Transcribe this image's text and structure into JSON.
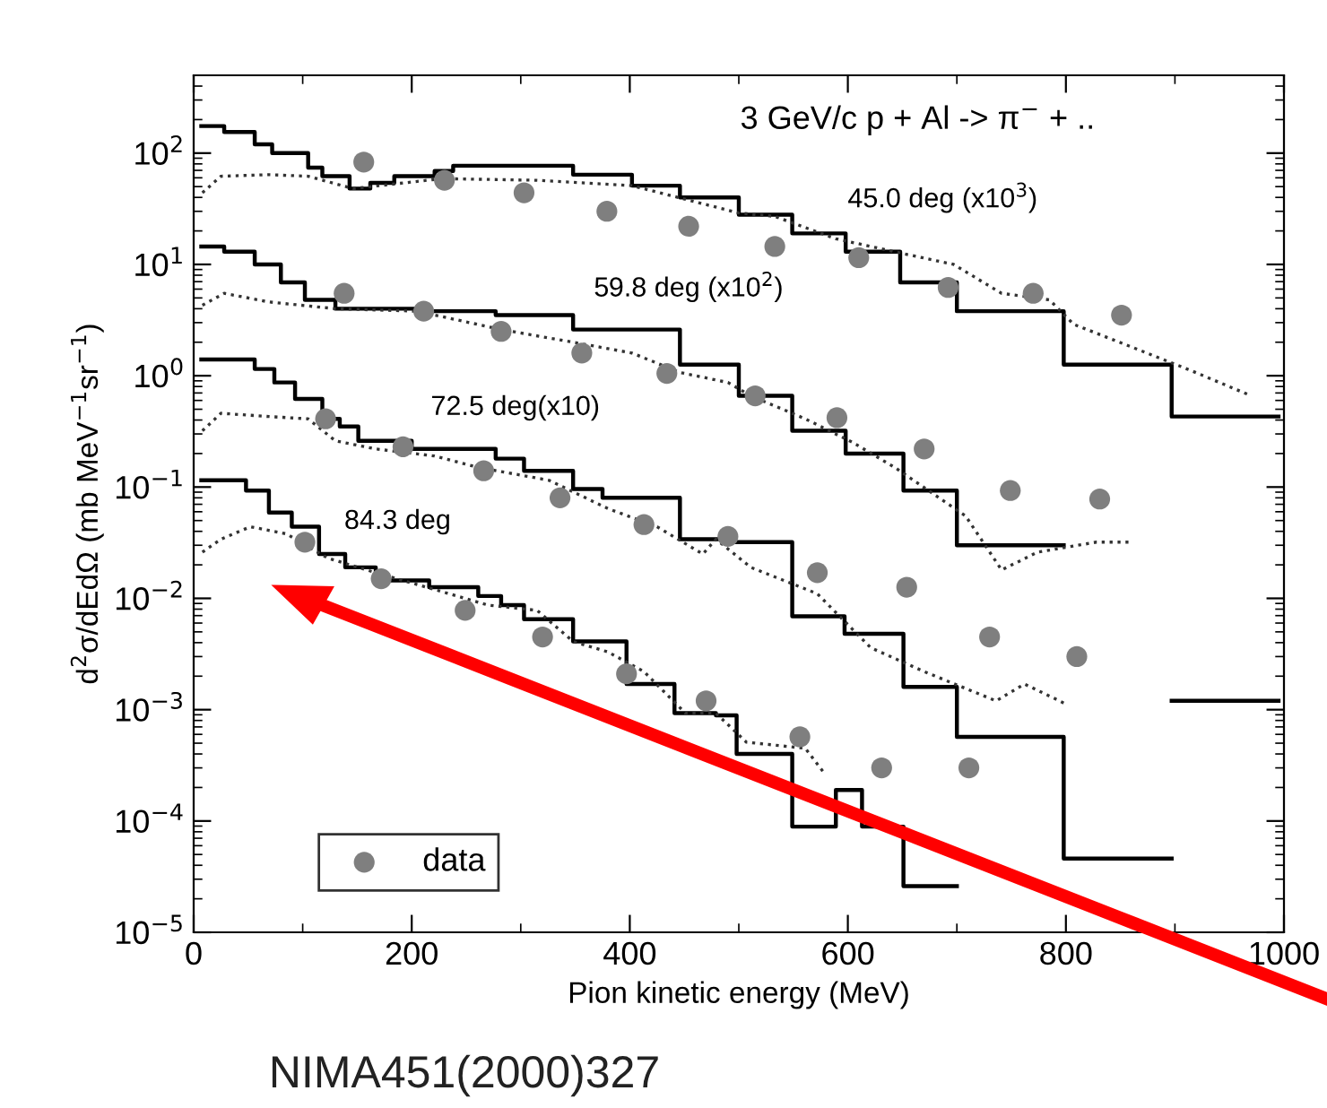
{
  "chart_data": {
    "type": "step",
    "title": "3 GeV/c p + Al -> π$^{−}$ + ..",
    "xlabel": "Pion kinetic energy (MeV)",
    "ylabel": "d$^{2}$σ/dEdΩ (mb MeV$^{−1}$sr$^{−1}$)",
    "log": "y",
    "grid": false,
    "legend": "bottom left",
    "xlim": [
      0,
      1000
    ],
    "xticks": [
      0,
      200,
      400,
      600,
      800,
      1000
    ],
    "ylim": [
      1e-05,
      500
    ],
    "yticks": [
      {
        "value": 1e-05,
        "label": "10$^{−5}$"
      },
      {
        "value": 0.0001,
        "label": "10$^{−4}$"
      },
      {
        "value": 0.001,
        "label": "10$^{−3}$"
      },
      {
        "value": 0.01,
        "label": "10$^{−2}$"
      },
      {
        "value": 0.1,
        "label": "10$^{−1}$"
      },
      {
        "value": 1,
        "label": "10$^{0}$"
      },
      {
        "value": 10,
        "label": "10$^{1}$"
      },
      {
        "value": 100,
        "label": "10$^{2}$"
      }
    ],
    "annotations": [
      "45.0 deg (x10$^{3}$)",
      "59.8 deg (x10$^{2}$)",
      "72.5 deg(x10)",
      "84.3 deg",
      "NIMA451(2000)327"
    ],
    "series": [
      {
        "line_style": "solid",
        "color": "#000000",
        "x": [
          7,
          28,
          56,
          72,
          105,
          118,
          143,
          162,
          184,
          221,
          238,
          277,
          348,
          402,
          446,
          500,
          549,
          598,
          648,
          700,
          798,
          897,
          995
        ],
        "values": [
          175,
          155,
          120,
          100,
          74,
          62,
          48,
          54,
          62,
          69,
          77,
          77,
          64,
          51,
          40,
          28,
          19,
          13,
          6.9,
          3.8,
          1.26,
          0.43,
          0.43
        ]
      },
      {
        "line_style": "solid",
        "color": "#000000",
        "x": [
          7,
          28,
          56,
          80,
          102,
          130,
          211,
          277,
          348,
          446,
          500,
          549,
          598,
          651,
          700,
          798,
          897,
          995
        ],
        "values": [
          14.5,
          13,
          10,
          6.9,
          4.8,
          4.0,
          3.8,
          3.5,
          2.6,
          1.26,
          0.66,
          0.32,
          0.2,
          0.093,
          0.03,
          null,
          0.0012,
          0.0012
        ]
      },
      {
        "line_style": "solid",
        "color": "#000000",
        "x": [
          7,
          56,
          74,
          93,
          118,
          134,
          151,
          200,
          277,
          303,
          348,
          375,
          446,
          495,
          549,
          597,
          651,
          700,
          798,
          897
        ],
        "values": [
          1.4,
          1.15,
          0.87,
          0.62,
          0.41,
          0.35,
          0.26,
          0.22,
          0.18,
          0.14,
          0.096,
          0.08,
          0.034,
          0.032,
          0.0069,
          0.0048,
          0.0016,
          0.00057,
          4.6e-05,
          4.6e-05
        ]
      },
      {
        "line_style": "solid",
        "color": "#000000",
        "x": [
          7,
          48,
          69,
          90,
          115,
          139,
          167,
          216,
          261,
          282,
          303,
          348,
          397,
          441,
          479,
          498,
          549,
          589,
          613,
          651,
          700
        ],
        "values": [
          0.115,
          0.093,
          0.059,
          0.044,
          0.025,
          0.019,
          0.0145,
          0.0126,
          0.0105,
          0.0087,
          0.0065,
          0.0041,
          0.0017,
          0.00093,
          0.00089,
          0.0004,
          8.9e-05,
          0.00019,
          8.9e-05,
          2.6e-05,
          2.6e-05
        ]
      },
      {
        "type": "line",
        "line_style": "dotted",
        "color": "#333333",
        "x": [
          8,
          25,
          69,
          105,
          146,
          228,
          315,
          402,
          500,
          533,
          589,
          643,
          697,
          741,
          785,
          807,
          861,
          916,
          970
        ],
        "values": [
          44,
          62,
          64,
          62,
          48,
          59,
          57,
          51,
          29,
          27,
          17,
          13,
          10,
          5.5,
          4.8,
          2.9,
          1.8,
          1.1,
          0.66
        ]
      },
      {
        "type": "line",
        "line_style": "dotted",
        "color": "#333333",
        "x": [
          8,
          28,
          69,
          130,
          205,
          282,
          348,
          402,
          446,
          490,
          511,
          561,
          605,
          643,
          708,
          741,
          774,
          828,
          861
        ],
        "values": [
          4.3,
          5.5,
          4.6,
          4.0,
          3.8,
          2.6,
          2.0,
          1.6,
          1.07,
          0.87,
          0.66,
          0.41,
          0.25,
          0.15,
          0.055,
          0.018,
          0.026,
          0.032,
          0.032
        ]
      },
      {
        "type": "line",
        "line_style": "dotted",
        "color": "#333333",
        "x": [
          8,
          25,
          69,
          105,
          130,
          167,
          221,
          261,
          326,
          380,
          425,
          467,
          479,
          511,
          572,
          621,
          670,
          736,
          762,
          802
        ],
        "values": [
          0.32,
          0.46,
          0.43,
          0.41,
          0.26,
          0.22,
          0.19,
          0.15,
          0.115,
          0.064,
          0.044,
          0.025,
          0.034,
          0.019,
          0.011,
          0.0036,
          0.0022,
          0.0012,
          0.0017,
          0.0011
        ]
      },
      {
        "type": "line",
        "line_style": "dotted",
        "color": "#333333",
        "x": [
          8,
          25,
          52,
          85,
          123,
          167,
          221,
          270,
          315,
          348,
          380,
          413,
          451,
          479,
          507,
          561,
          577
        ],
        "values": [
          0.026,
          0.034,
          0.044,
          0.038,
          0.023,
          0.017,
          0.012,
          0.0087,
          0.0078,
          0.0041,
          0.0033,
          0.0022,
          0.00093,
          0.00093,
          0.00051,
          0.00045,
          0.00028
        ]
      },
      {
        "type": "scatter",
        "name": "data",
        "marker": "circle",
        "color": "#7f7f7f",
        "x": [
          156,
          230,
          303,
          379,
          454,
          533,
          610,
          692,
          770,
          851
        ],
        "values": [
          83,
          57,
          44,
          30,
          22,
          14.5,
          11.5,
          6.2,
          5.5,
          3.5
        ]
      },
      {
        "type": "scatter",
        "marker": "circle",
        "color": "#7f7f7f",
        "x": [
          138,
          211,
          282,
          356,
          434,
          515,
          590,
          670,
          749,
          831
        ],
        "values": [
          5.5,
          3.8,
          2.5,
          1.6,
          1.05,
          0.66,
          0.42,
          0.22,
          0.093,
          0.078
        ]
      },
      {
        "type": "scatter",
        "marker": "circle",
        "color": "#7f7f7f",
        "x": [
          121,
          192,
          266,
          336,
          413,
          490,
          572,
          654,
          730,
          810
        ],
        "values": [
          0.41,
          0.23,
          0.14,
          0.08,
          0.046,
          0.036,
          0.017,
          0.0126,
          0.0045,
          0.003
        ]
      },
      {
        "type": "scatter",
        "marker": "circle",
        "color": "#7f7f7f",
        "x": [
          102,
          172,
          249,
          320,
          397,
          470,
          556,
          631,
          711
        ],
        "values": [
          0.032,
          0.015,
          0.0078,
          0.0045,
          0.0021,
          0.0012,
          0.00057,
          0.0003,
          0.0003
        ]
      }
    ]
  }
}
